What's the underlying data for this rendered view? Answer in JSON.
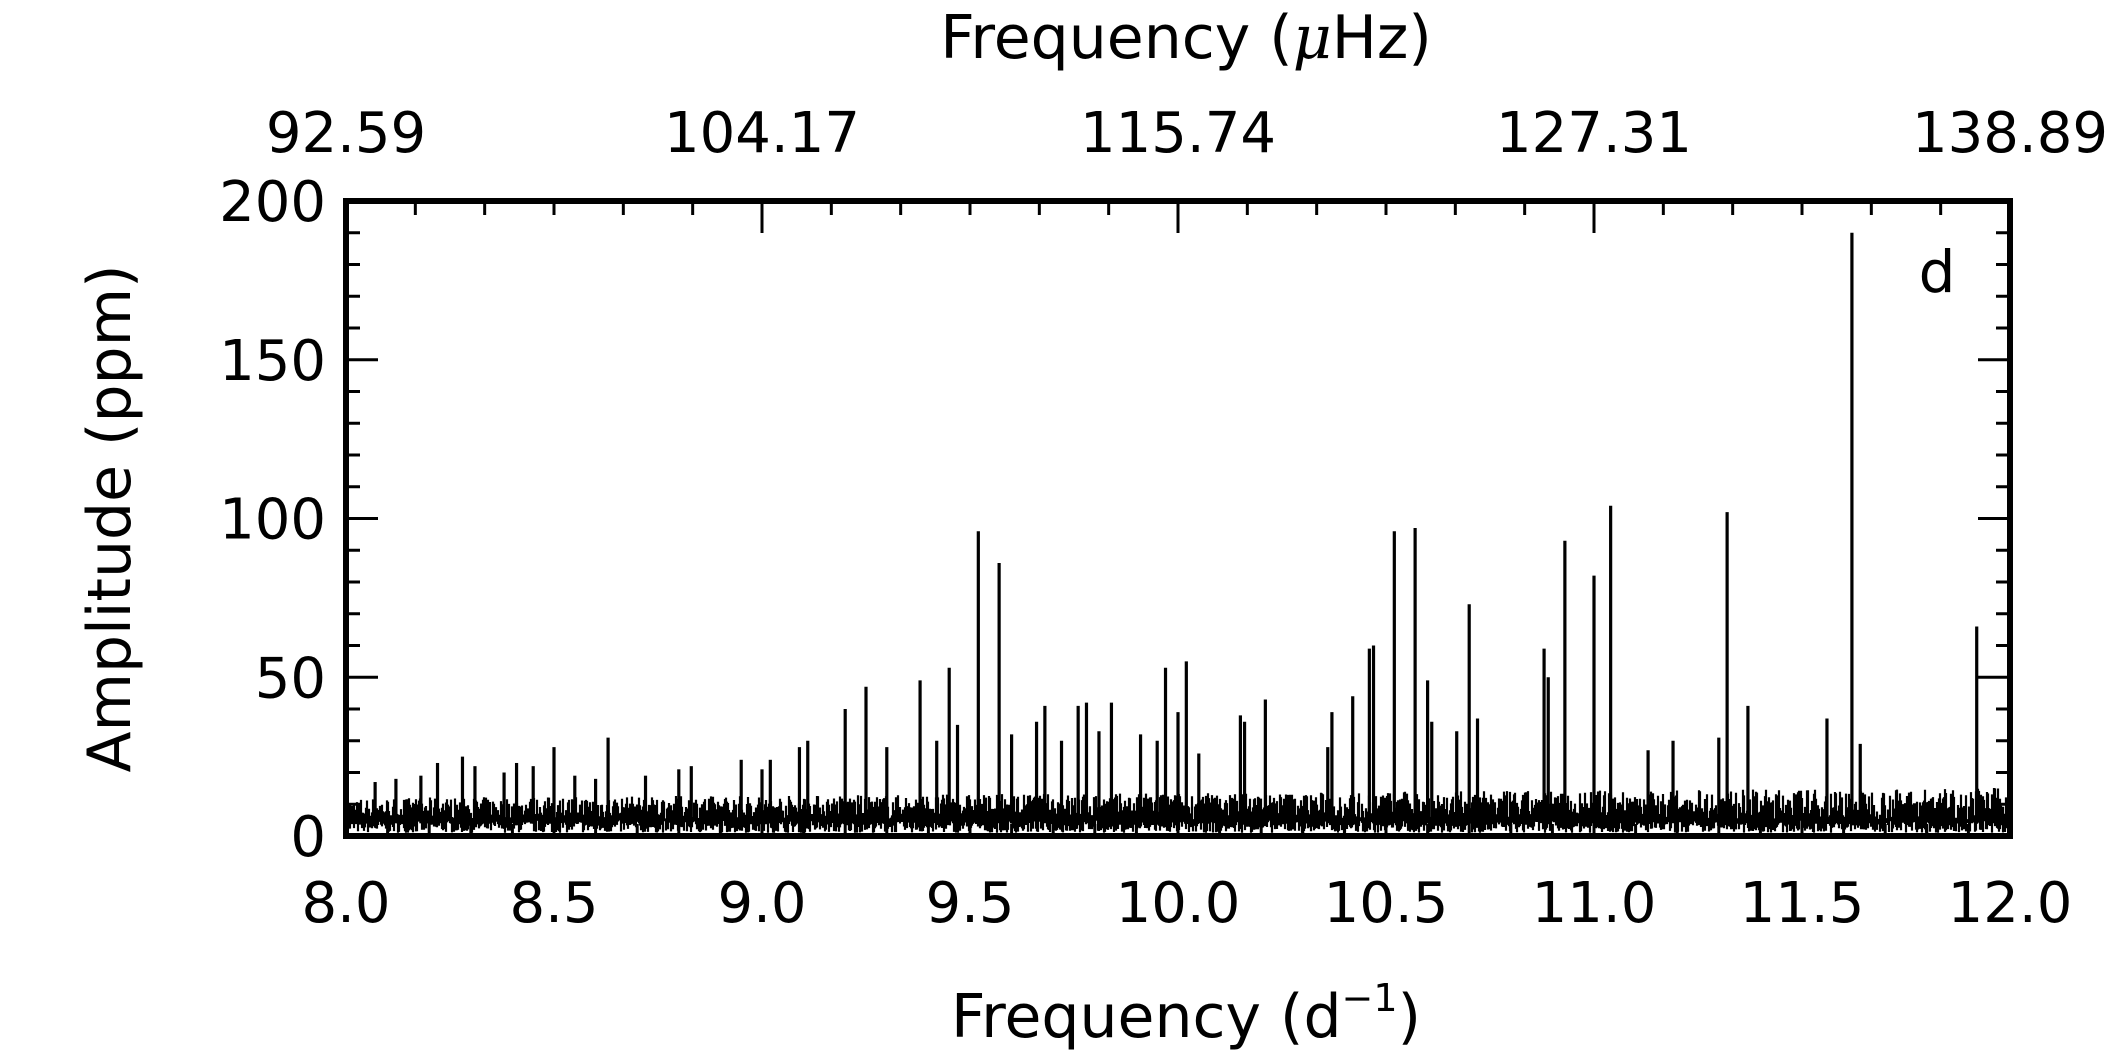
{
  "chart_data": {
    "type": "line",
    "panel_label": "d",
    "xlabel_main": "Frequency (d",
    "xlabel_sup": "−1",
    "xlabel_close": ")",
    "xlabel_top_pre": "Frequency (",
    "xlabel_top_mu": "μ",
    "xlabel_top_post": "Hz)",
    "ylabel": "Amplitude (ppm)",
    "xlim": [
      8.0,
      12.0
    ],
    "ylim": [
      0,
      200
    ],
    "x_ticks": [
      "8.0",
      "8.5",
      "9.0",
      "9.5",
      "10.0",
      "10.5",
      "11.0",
      "11.5",
      "12.0"
    ],
    "x_tick_values": [
      8.0,
      8.5,
      9.0,
      9.5,
      10.0,
      10.5,
      11.0,
      11.5,
      12.0
    ],
    "y_ticks": [
      "0",
      "50",
      "100",
      "150",
      "200"
    ],
    "y_tick_values": [
      0,
      50,
      100,
      150,
      200
    ],
    "top_ticks": [
      "92.59",
      "104.17",
      "115.74",
      "127.31",
      "138.89"
    ],
    "top_tick_values": [
      8.0,
      9.0,
      10.0,
      11.0,
      12.0
    ],
    "grid": false,
    "line_color": "#000000",
    "noise_level_ppm": [
      5,
      12
    ],
    "peaks": [
      {
        "x": 8.07,
        "y": 17
      },
      {
        "x": 8.12,
        "y": 18
      },
      {
        "x": 8.18,
        "y": 19
      },
      {
        "x": 8.22,
        "y": 23
      },
      {
        "x": 8.28,
        "y": 25
      },
      {
        "x": 8.31,
        "y": 22
      },
      {
        "x": 8.38,
        "y": 20
      },
      {
        "x": 8.41,
        "y": 23
      },
      {
        "x": 8.45,
        "y": 22
      },
      {
        "x": 8.5,
        "y": 28
      },
      {
        "x": 8.55,
        "y": 19
      },
      {
        "x": 8.6,
        "y": 18
      },
      {
        "x": 8.63,
        "y": 31
      },
      {
        "x": 8.72,
        "y": 19
      },
      {
        "x": 8.8,
        "y": 21
      },
      {
        "x": 8.83,
        "y": 22
      },
      {
        "x": 8.95,
        "y": 24
      },
      {
        "x": 9.0,
        "y": 21
      },
      {
        "x": 9.02,
        "y": 24
      },
      {
        "x": 9.09,
        "y": 28
      },
      {
        "x": 9.11,
        "y": 30
      },
      {
        "x": 9.2,
        "y": 40
      },
      {
        "x": 9.25,
        "y": 47
      },
      {
        "x": 9.3,
        "y": 28
      },
      {
        "x": 9.38,
        "y": 49
      },
      {
        "x": 9.42,
        "y": 30
      },
      {
        "x": 9.45,
        "y": 53
      },
      {
        "x": 9.47,
        "y": 35
      },
      {
        "x": 9.52,
        "y": 96
      },
      {
        "x": 9.57,
        "y": 86
      },
      {
        "x": 9.6,
        "y": 32
      },
      {
        "x": 9.66,
        "y": 36
      },
      {
        "x": 9.68,
        "y": 41
      },
      {
        "x": 9.72,
        "y": 30
      },
      {
        "x": 9.76,
        "y": 41
      },
      {
        "x": 9.78,
        "y": 42
      },
      {
        "x": 9.81,
        "y": 33
      },
      {
        "x": 9.84,
        "y": 42
      },
      {
        "x": 9.91,
        "y": 32
      },
      {
        "x": 9.95,
        "y": 30
      },
      {
        "x": 9.97,
        "y": 53
      },
      {
        "x": 10.0,
        "y": 39
      },
      {
        "x": 10.02,
        "y": 55
      },
      {
        "x": 10.05,
        "y": 26
      },
      {
        "x": 10.15,
        "y": 38
      },
      {
        "x": 10.16,
        "y": 36
      },
      {
        "x": 10.21,
        "y": 43
      },
      {
        "x": 10.36,
        "y": 28
      },
      {
        "x": 10.37,
        "y": 39
      },
      {
        "x": 10.42,
        "y": 44
      },
      {
        "x": 10.46,
        "y": 59
      },
      {
        "x": 10.47,
        "y": 60
      },
      {
        "x": 10.52,
        "y": 96
      },
      {
        "x": 10.57,
        "y": 97
      },
      {
        "x": 10.6,
        "y": 49
      },
      {
        "x": 10.61,
        "y": 36
      },
      {
        "x": 10.67,
        "y": 33
      },
      {
        "x": 10.7,
        "y": 73
      },
      {
        "x": 10.72,
        "y": 37
      },
      {
        "x": 10.88,
        "y": 59
      },
      {
        "x": 10.89,
        "y": 50
      },
      {
        "x": 10.93,
        "y": 93
      },
      {
        "x": 11.0,
        "y": 82
      },
      {
        "x": 11.04,
        "y": 104
      },
      {
        "x": 11.13,
        "y": 27
      },
      {
        "x": 11.19,
        "y": 30
      },
      {
        "x": 11.3,
        "y": 31
      },
      {
        "x": 11.32,
        "y": 102
      },
      {
        "x": 11.37,
        "y": 41
      },
      {
        "x": 11.56,
        "y": 37
      },
      {
        "x": 11.62,
        "y": 190
      },
      {
        "x": 11.64,
        "y": 29
      },
      {
        "x": 11.92,
        "y": 66
      }
    ]
  }
}
